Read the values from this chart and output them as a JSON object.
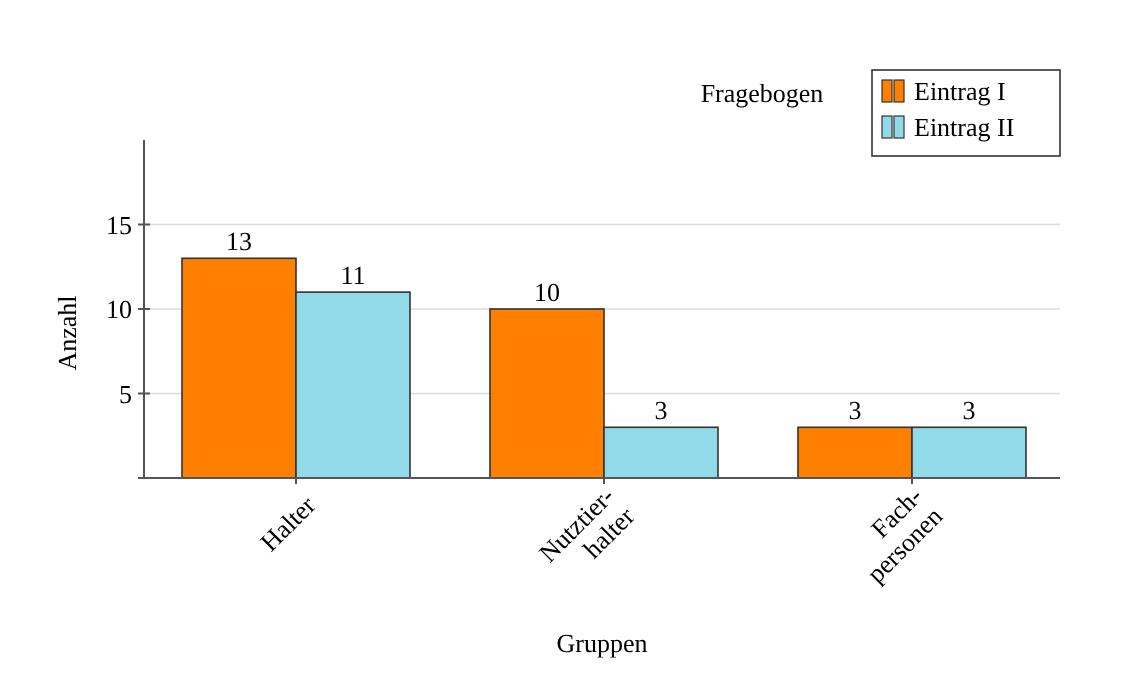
{
  "chart_data": {
    "type": "bar",
    "title": "Fragebogen",
    "xlabel": "Gruppen",
    "ylabel": "Anzahl",
    "categories": [
      "Halter",
      "Nutztier-\nhalter",
      "Fach-\npersonen"
    ],
    "series": [
      {
        "name": "Eintrag I",
        "color": "#ff7f00",
        "values": [
          13,
          10,
          3
        ]
      },
      {
        "name": "Eintrag II",
        "color": "#91dbe9",
        "values": [
          11,
          3,
          3
        ]
      }
    ],
    "ylim": [
      0,
      20
    ],
    "yticks": [
      {
        "value": 0,
        "label": null
      },
      5,
      10,
      15
    ],
    "grid": "y",
    "legend": "top right",
    "data_labels": true
  }
}
